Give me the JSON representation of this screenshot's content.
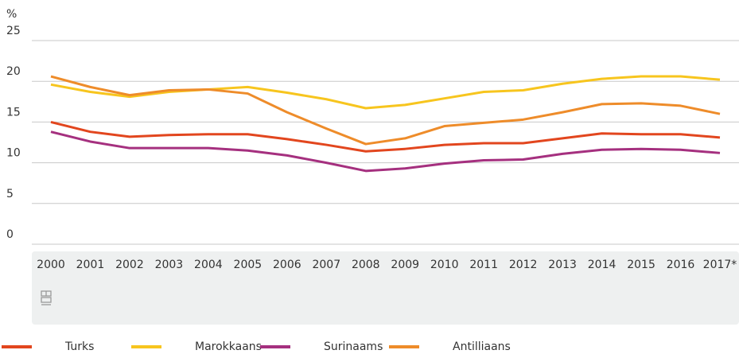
{
  "chart_data": {
    "type": "line",
    "y_label": "%",
    "categories": [
      "2000",
      "2001",
      "2002",
      "2003",
      "2004",
      "2005",
      "2006",
      "2007",
      "2008",
      "2009",
      "2010",
      "2011",
      "2012",
      "2013",
      "2014",
      "2015",
      "2016",
      "2017*"
    ],
    "series": [
      {
        "name": "Turks",
        "color": "#e2461e",
        "values": [
          15.0,
          13.8,
          13.2,
          13.4,
          13.5,
          13.5,
          12.9,
          12.2,
          11.4,
          11.7,
          12.2,
          12.4,
          12.4,
          13.0,
          13.6,
          13.5,
          13.5,
          13.1
        ]
      },
      {
        "name": "Marokkaans",
        "color": "#f7c51e",
        "values": [
          19.6,
          18.7,
          18.1,
          18.7,
          19.0,
          19.3,
          18.6,
          17.8,
          16.7,
          17.1,
          17.9,
          18.7,
          18.9,
          19.7,
          20.3,
          20.6,
          20.6,
          20.2
        ]
      },
      {
        "name": "Surinaams",
        "color": "#a5307f",
        "values": [
          13.8,
          12.6,
          11.8,
          11.8,
          11.8,
          11.5,
          10.9,
          10.0,
          9.0,
          9.3,
          9.9,
          10.3,
          10.4,
          11.1,
          11.6,
          11.7,
          11.6,
          11.2
        ]
      },
      {
        "name": "Antilliaans",
        "color": "#ee8c2a",
        "values": [
          20.6,
          19.3,
          18.3,
          18.9,
          19.0,
          18.5,
          16.2,
          14.2,
          12.3,
          13.0,
          14.5,
          14.9,
          15.3,
          16.2,
          17.2,
          17.3,
          17.0,
          16.0
        ]
      }
    ],
    "ylim": [
      0,
      25
    ],
    "yticks": [
      0,
      5,
      10,
      15,
      20,
      25
    ],
    "grid": true
  }
}
